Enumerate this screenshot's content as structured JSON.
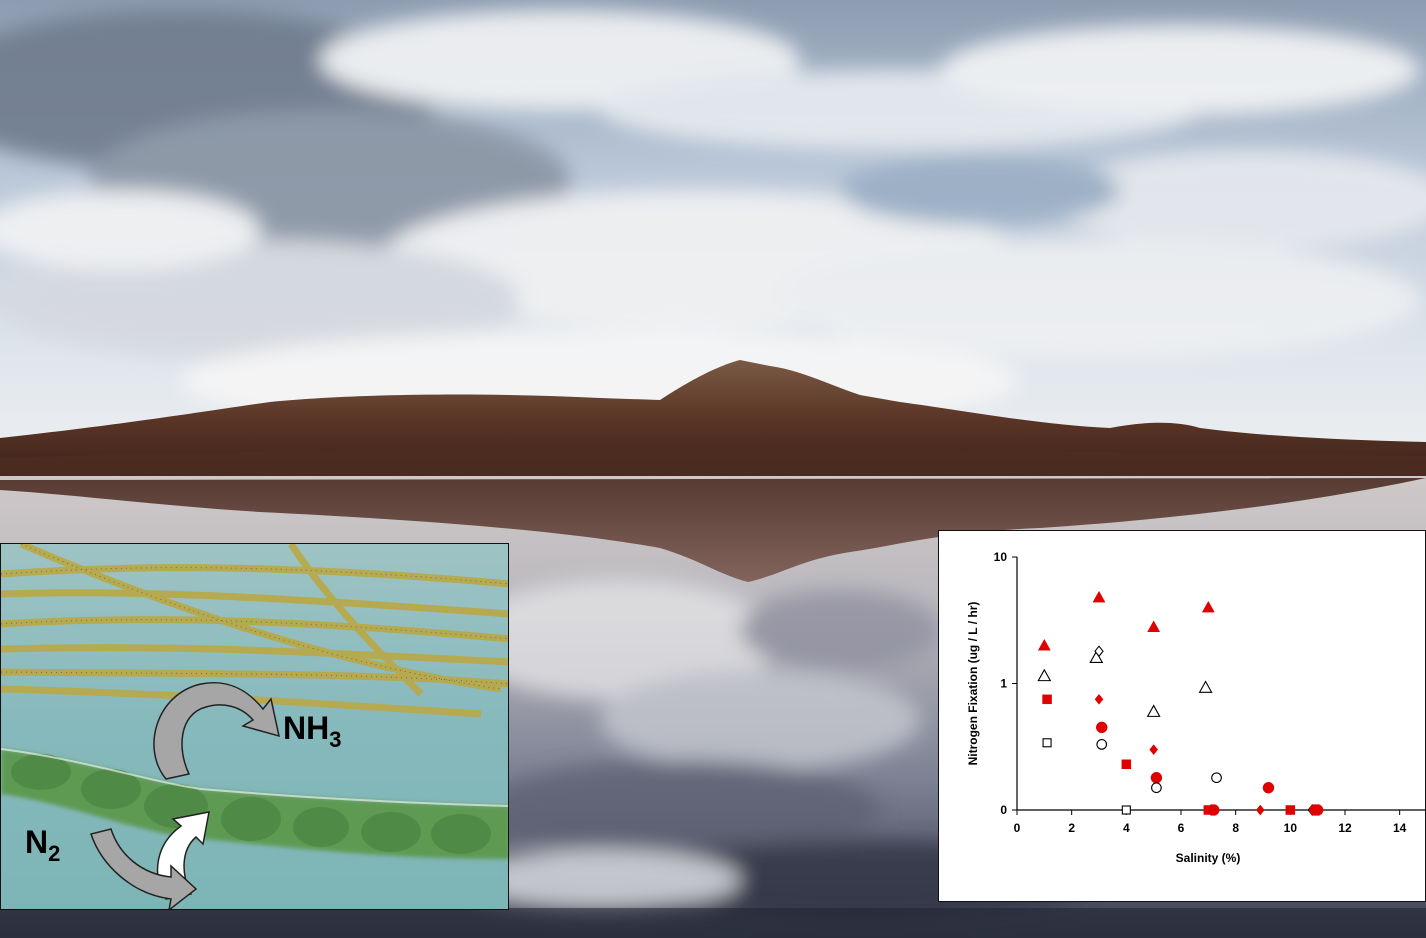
{
  "micro": {
    "product_label": "NH",
    "product_sub": "3",
    "reactant_label": "N",
    "reactant_sub": "2"
  },
  "chart_data": {
    "type": "scatter",
    "xlabel": "Salinity (%)",
    "ylabel": "Nitrogen Fixation (ug / L / hr)",
    "xlim": [
      0,
      15
    ],
    "x_ticks": [
      "0",
      "2",
      "4",
      "6",
      "8",
      "10",
      "12",
      "14"
    ],
    "y_ticks": [
      {
        "value": 0,
        "label": "0"
      },
      {
        "value": 1,
        "label": "1"
      },
      {
        "value": 10,
        "label": "10"
      }
    ],
    "y_scale": "log-like (0, 1, 10)",
    "grid": false,
    "legend": "none",
    "series": [
      {
        "marker": "filled-triangle",
        "color": "#e00000",
        "points": [
          [
            1.0,
            2.0
          ],
          [
            3.0,
            4.8
          ],
          [
            5.0,
            2.8
          ],
          [
            7.0,
            4.0
          ]
        ]
      },
      {
        "marker": "open-triangle",
        "color": "#000000",
        "points": [
          [
            1.0,
            1.15
          ],
          [
            2.9,
            1.6
          ],
          [
            5.0,
            0.6
          ],
          [
            6.9,
            0.93
          ]
        ]
      },
      {
        "marker": "open-diamond",
        "color": "#000000",
        "points": [
          [
            3.0,
            1.8
          ],
          [
            7.1,
            0.1
          ],
          [
            10.8,
            0.0
          ]
        ]
      },
      {
        "marker": "filled-diamond",
        "color": "#e00000",
        "points": [
          [
            3.0,
            0.75
          ],
          [
            5.0,
            0.3
          ],
          [
            8.9,
            0.0
          ]
        ]
      },
      {
        "marker": "filled-circle",
        "color": "#e00000",
        "points": [
          [
            3.1,
            0.45
          ],
          [
            5.1,
            0.18
          ],
          [
            7.2,
            0.1
          ],
          [
            9.2,
            0.15
          ],
          [
            10.9,
            0.01
          ],
          [
            11.0,
            0.03
          ]
        ]
      },
      {
        "marker": "open-circle",
        "color": "#000000",
        "points": [
          [
            3.1,
            0.33
          ],
          [
            5.1,
            0.15
          ],
          [
            7.3,
            0.18
          ]
        ]
      },
      {
        "marker": "filled-square",
        "color": "#e00000",
        "points": [
          [
            1.1,
            0.75
          ],
          [
            4.0,
            0.23
          ],
          [
            7.0,
            0.0
          ],
          [
            10.0,
            0.0
          ]
        ]
      },
      {
        "marker": "open-square",
        "color": "#000000",
        "points": [
          [
            1.1,
            0.34
          ],
          [
            4.0,
            0.0
          ]
        ]
      }
    ]
  }
}
